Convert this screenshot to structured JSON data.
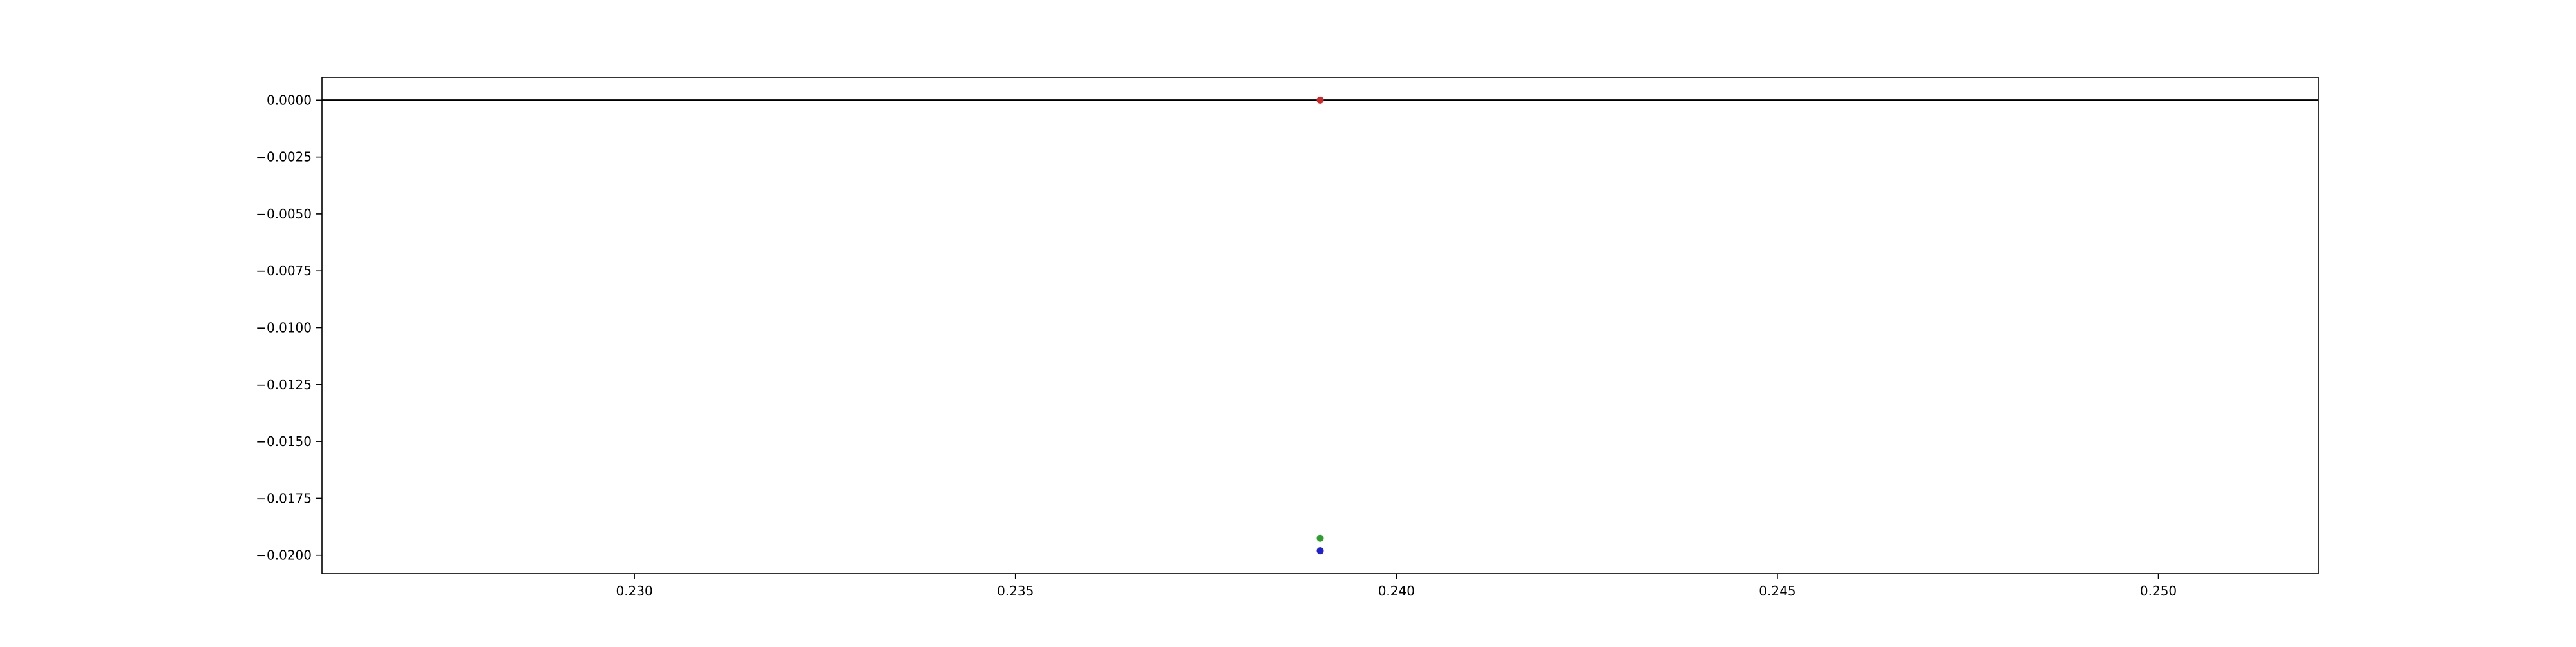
{
  "chart_data": {
    "type": "scatter",
    "title": "",
    "xlabel": "",
    "ylabel": "",
    "xlim": [
      0.2259,
      0.2521
    ],
    "ylim": [
      -0.0208,
      0.001
    ],
    "x_ticks": [
      "0.230",
      "0.235",
      "0.240",
      "0.245",
      "0.250"
    ],
    "y_ticks": [
      "0.0000",
      "−0.0025",
      "−0.0050",
      "−0.0075",
      "−0.0100",
      "−0.0125",
      "−0.0150",
      "−0.0175",
      "−0.0200"
    ],
    "reference_line": {
      "y": 0.0,
      "color": "#000000"
    },
    "grid": false,
    "legend": "none",
    "series": [
      {
        "color": "#d62728",
        "points": [
          {
            "x": 0.239,
            "y": 0.0
          }
        ]
      },
      {
        "color": "#2ca02c",
        "points": [
          {
            "x": 0.239,
            "y": -0.01925
          }
        ]
      },
      {
        "color": "#1f1fd6",
        "points": [
          {
            "x": 0.239,
            "y": -0.0198
          }
        ]
      }
    ]
  }
}
